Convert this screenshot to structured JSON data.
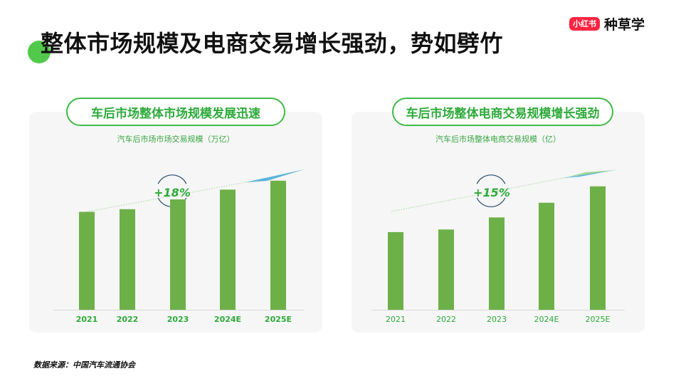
{
  "page": {
    "title": "整体市场规模及电商交易增长强劲，势如劈竹",
    "source": "数据来源：中国汽车流通协会"
  },
  "brand": {
    "badge": "小红书",
    "name": "种草学",
    "badge_color": "#ff2442"
  },
  "colors": {
    "accent": "#3fbb47",
    "bar": "#6db048",
    "text_green": "#2daa3a"
  },
  "panels": [
    {
      "heading": "车后市场整体市场规模发展迅速",
      "subtitle": "汽车后市场市场交易规模（万亿）"
    },
    {
      "heading": "车后市场整体电商交易规模增长强劲",
      "subtitle": "汽车后市场整体电商交易规模（亿）"
    }
  ],
  "chart_data": [
    {
      "type": "bar",
      "title": "汽车后市场市场交易规模（万亿）",
      "categories": [
        "2021",
        "2022",
        "2023",
        "2024E",
        "2025E"
      ],
      "values": [
        1.1,
        1.13,
        1.24,
        1.35,
        1.45
      ],
      "ylim": [
        0,
        1.6
      ],
      "growth_label": "+18%",
      "tick_bold": true,
      "grid": false
    },
    {
      "type": "bar",
      "title": "汽车后市场整体电商交易规模（亿）",
      "categories": [
        "2021",
        "2022",
        "2023",
        "2024E",
        "2025E"
      ],
      "values": [
        900,
        930,
        1070,
        1240,
        1430
      ],
      "ylim": [
        0,
        1650
      ],
      "growth_label": "+15%",
      "tick_bold": false,
      "grid": false
    }
  ]
}
